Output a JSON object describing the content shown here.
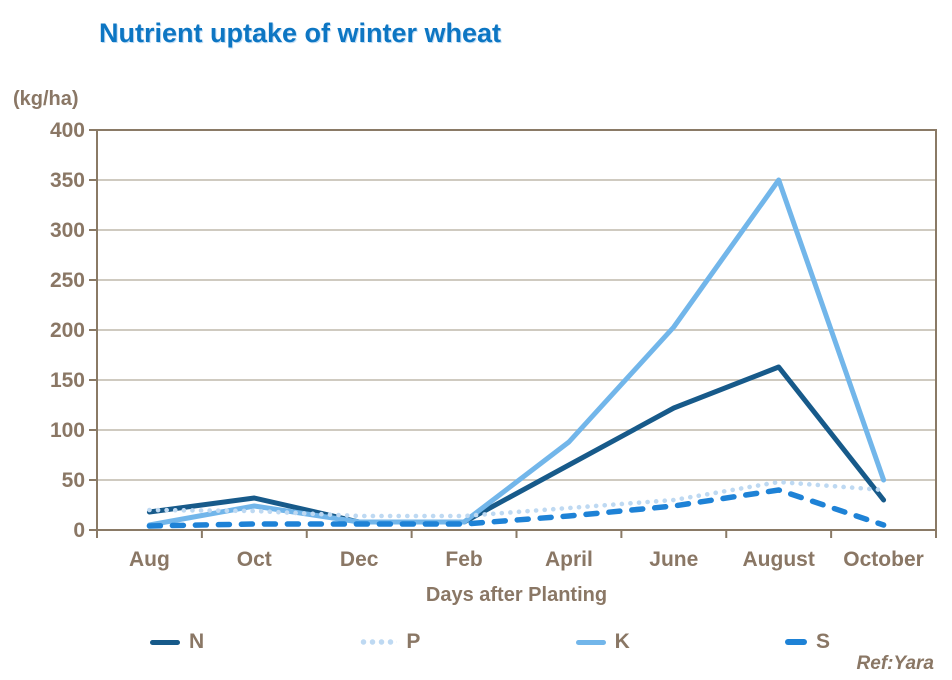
{
  "title": "Nutrient uptake of winter wheat",
  "y_axis_unit": "(kg/ha)",
  "x_axis_title": "Days after Planting",
  "ref": "Ref:Yara",
  "colors": {
    "title_blue": "#0d76c3",
    "label_brown": "#8a7765",
    "axis_brown": "#8a7a66",
    "gridline_gray": "#bfb8ac",
    "n_dark_blue": "#175a8a",
    "p_pale_blue": "#bed9f2",
    "k_light_blue": "#72b6ea",
    "s_azure_blue": "#1e82d6"
  },
  "chart_data": {
    "type": "line",
    "title": "Nutrient uptake of winter wheat",
    "ylabel": "(kg/ha)",
    "xlabel": "Days after Planting",
    "categories": [
      "Aug",
      "Oct",
      "Dec",
      "Feb",
      "April",
      "June",
      "August",
      "October"
    ],
    "series": [
      {
        "name": "N",
        "style": "solid",
        "color": "#175a8a",
        "values": [
          18,
          32,
          8,
          8,
          65,
          122,
          163,
          30
        ]
      },
      {
        "name": "P",
        "style": "dotted",
        "color": "#bed9f2",
        "values": [
          20,
          19,
          14,
          14,
          22,
          30,
          48,
          40
        ]
      },
      {
        "name": "K",
        "style": "solid",
        "color": "#72b6ea",
        "values": [
          5,
          24,
          8,
          8,
          88,
          203,
          350,
          50
        ]
      },
      {
        "name": "S",
        "style": "dashed",
        "color": "#1e82d6",
        "values": [
          4,
          6,
          6,
          6,
          14,
          24,
          40,
          5
        ]
      }
    ],
    "ylim": [
      0,
      400
    ],
    "yticks": [
      0,
      50,
      100,
      150,
      200,
      250,
      300,
      350,
      400
    ],
    "grid": "horizontal",
    "legend_position": "bottom"
  },
  "legend": {
    "items": [
      {
        "label": "N",
        "series": 0
      },
      {
        "label": "P",
        "series": 1
      },
      {
        "label": "K",
        "series": 2
      },
      {
        "label": "S",
        "series": 3
      }
    ]
  }
}
